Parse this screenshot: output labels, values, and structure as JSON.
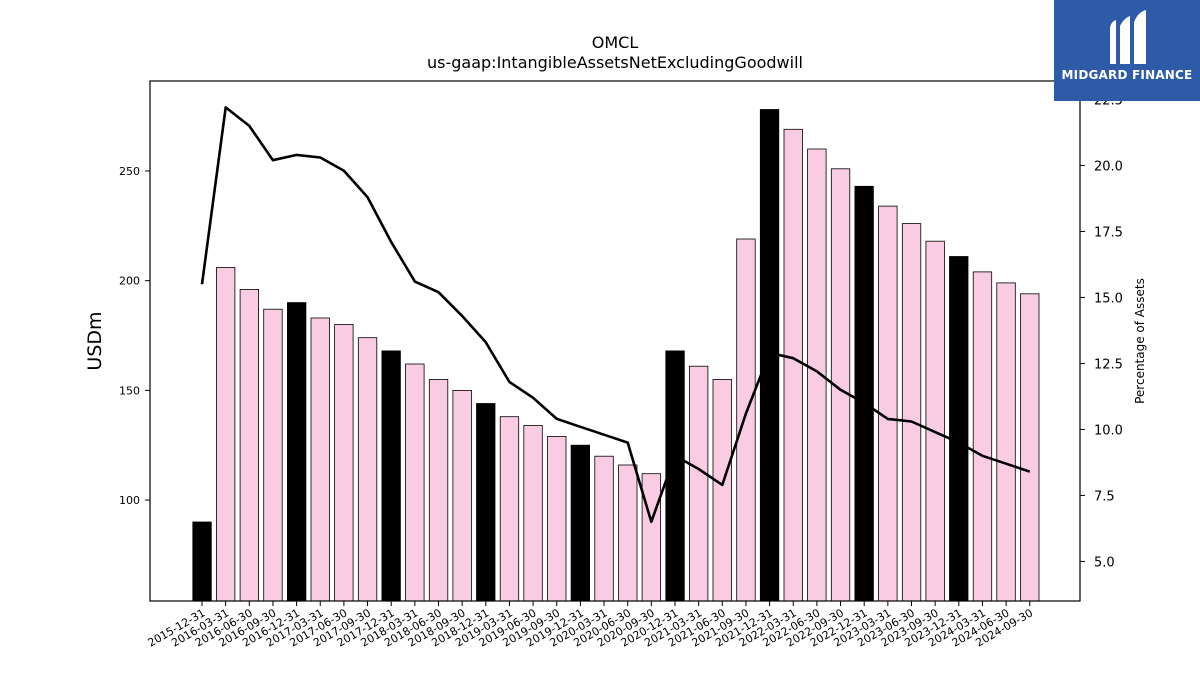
{
  "header": {
    "title": "OMCL",
    "subtitle": "us-gaap:IntangibleAssetsNetExcludingGoodwill"
  },
  "logo": {
    "text": "MIDGARD FINANCE",
    "icon": "midgard-m-icon",
    "color": "#2d5ba8"
  },
  "chart_data": {
    "type": "bar",
    "title": "OMCL",
    "subtitle": "us-gaap:IntangibleAssetsNetExcludingGoodwill",
    "ylabel": "USDm",
    "y2label": "Percentage of Assets",
    "ylim": [
      54,
      291
    ],
    "y2lim": [
      3.5,
      23.2
    ],
    "yticks": [
      100,
      150,
      200,
      250
    ],
    "y2ticks": [
      5.0,
      7.5,
      10.0,
      12.5,
      15.0,
      17.5,
      20.0,
      22.5
    ],
    "colors": {
      "q4_bar": "#000000",
      "bar": "#f9cce4",
      "line": "#000000"
    },
    "categories": [
      "2015-12-31",
      "2016-03-31",
      "2016-06-30",
      "2016-09-30",
      "2016-12-31",
      "2017-03-31",
      "2017-06-30",
      "2017-09-30",
      "2017-12-31",
      "2018-03-31",
      "2018-06-30",
      "2018-09-30",
      "2018-12-31",
      "2019-03-31",
      "2019-06-30",
      "2019-09-30",
      "2019-12-31",
      "2020-03-31",
      "2020-06-30",
      "2020-09-30",
      "2020-12-31",
      "2021-03-31",
      "2021-06-30",
      "2021-09-30",
      "2021-12-31",
      "2022-03-31",
      "2022-06-30",
      "2022-09-30",
      "2022-12-31",
      "2023-03-31",
      "2023-06-30",
      "2023-09-30",
      "2023-12-31",
      "2024-03-31",
      "2024-06-30",
      "2024-09-30"
    ],
    "series": [
      {
        "type": "bar",
        "values": [
          90,
          206,
          196,
          187,
          190,
          183,
          180,
          174,
          168,
          162,
          155,
          150,
          144,
          138,
          134,
          129,
          125,
          120,
          116,
          112,
          168,
          161,
          155,
          219,
          278,
          269,
          260,
          251,
          243,
          234,
          226,
          218,
          211,
          204,
          199,
          194
        ]
      },
      {
        "type": "line",
        "axis": "right",
        "values": [
          15.5,
          22.2,
          21.5,
          20.2,
          20.4,
          20.3,
          19.8,
          18.8,
          17.1,
          15.6,
          15.2,
          14.3,
          13.3,
          11.8,
          11.2,
          10.4,
          10.1,
          9.8,
          9.5,
          6.5,
          9.0,
          8.5,
          7.9,
          10.6,
          12.9,
          12.7,
          12.2,
          11.5,
          11.0,
          10.4,
          10.3,
          9.9,
          9.5,
          9.0,
          8.7,
          8.4
        ]
      }
    ]
  }
}
